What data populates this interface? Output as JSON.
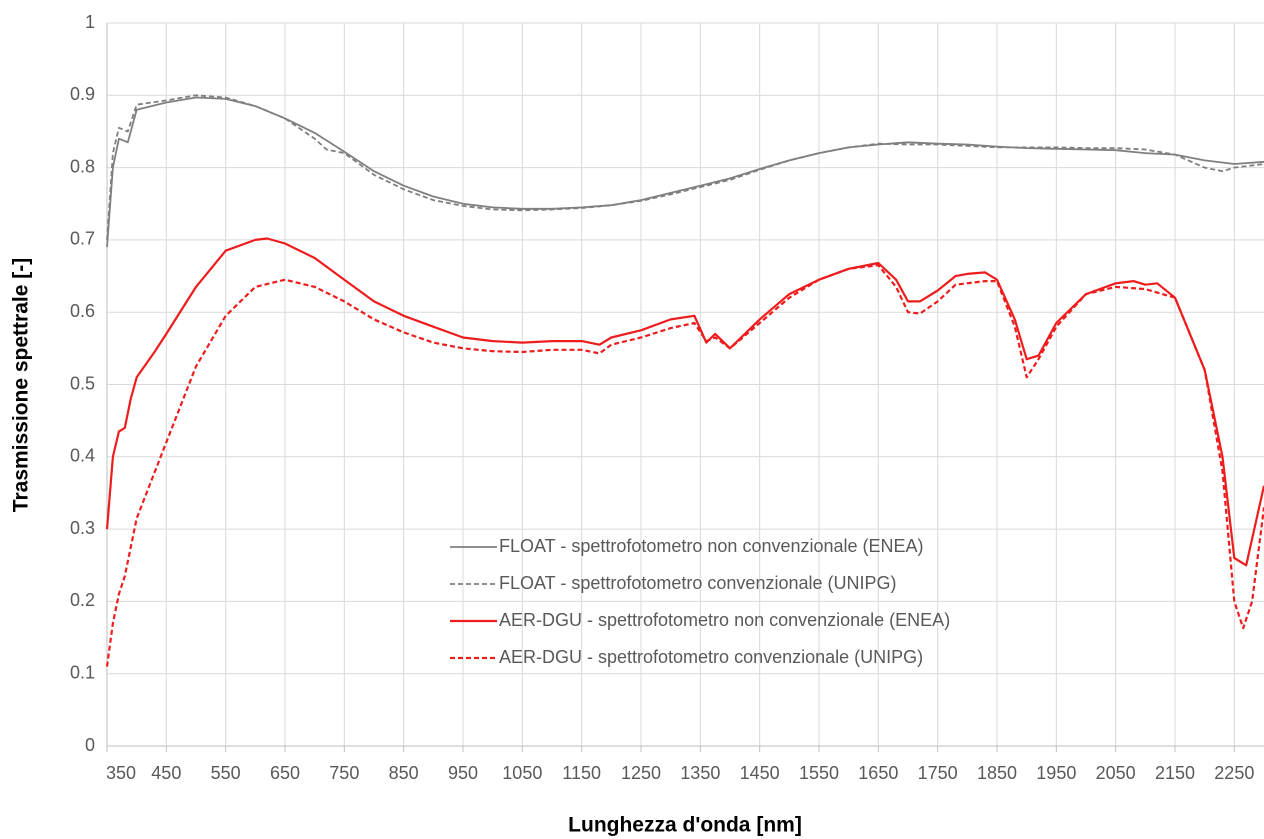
{
  "chart_data": {
    "type": "line",
    "xlabel": "Lunghezza d'onda [nm]",
    "ylabel": "Trasmissione spettrale [-]",
    "xlim": [
      350,
      2300
    ],
    "ylim": [
      0,
      1
    ],
    "xticks": [
      350,
      450,
      550,
      650,
      750,
      850,
      950,
      1050,
      1150,
      1250,
      1350,
      1450,
      1550,
      1650,
      1750,
      1850,
      1950,
      2050,
      2150,
      2250
    ],
    "yticks": [
      0,
      0.1,
      0.2,
      0.3,
      0.4,
      0.5,
      0.6,
      0.7,
      0.8,
      0.9,
      1
    ],
    "grid": true,
    "legend": "lower center",
    "series": [
      {
        "name": "FLOAT - spettrofotometro non convenzionale (ENEA)",
        "color": "#7f7f7f",
        "dash": false,
        "x": [
          350,
          360,
          370,
          385,
          400,
          450,
          500,
          550,
          600,
          650,
          700,
          750,
          800,
          850,
          900,
          950,
          1000,
          1050,
          1100,
          1150,
          1200,
          1250,
          1300,
          1350,
          1400,
          1450,
          1500,
          1550,
          1600,
          1650,
          1700,
          1750,
          1800,
          1850,
          1900,
          1950,
          2000,
          2050,
          2100,
          2150,
          2200,
          2250,
          2300
        ],
        "values": [
          0.69,
          0.8,
          0.84,
          0.835,
          0.88,
          0.89,
          0.897,
          0.895,
          0.885,
          0.868,
          0.848,
          0.822,
          0.795,
          0.775,
          0.76,
          0.75,
          0.745,
          0.743,
          0.743,
          0.745,
          0.748,
          0.755,
          0.765,
          0.775,
          0.785,
          0.798,
          0.81,
          0.82,
          0.828,
          0.832,
          0.835,
          0.833,
          0.832,
          0.829,
          0.827,
          0.826,
          0.825,
          0.824,
          0.82,
          0.818,
          0.81,
          0.805,
          0.808
        ]
      },
      {
        "name": "FLOAT - spettrofotometro convenzionale (UNIPG)",
        "color": "#7f7f7f",
        "dash": true,
        "x": [
          350,
          360,
          370,
          385,
          400,
          450,
          500,
          550,
          600,
          650,
          700,
          720,
          750,
          800,
          850,
          900,
          950,
          1000,
          1050,
          1100,
          1150,
          1200,
          1250,
          1300,
          1350,
          1400,
          1450,
          1500,
          1550,
          1600,
          1650,
          1700,
          1750,
          1800,
          1850,
          1900,
          1950,
          2000,
          2050,
          2100,
          2150,
          2200,
          2230,
          2250,
          2300
        ],
        "values": [
          0.7,
          0.82,
          0.855,
          0.85,
          0.887,
          0.893,
          0.9,
          0.897,
          0.885,
          0.868,
          0.84,
          0.825,
          0.82,
          0.79,
          0.77,
          0.755,
          0.747,
          0.742,
          0.741,
          0.742,
          0.744,
          0.748,
          0.754,
          0.763,
          0.773,
          0.783,
          0.797,
          0.81,
          0.82,
          0.828,
          0.833,
          0.832,
          0.832,
          0.83,
          0.828,
          0.828,
          0.828,
          0.827,
          0.827,
          0.825,
          0.818,
          0.8,
          0.795,
          0.8,
          0.805
        ]
      },
      {
        "name": "AER-DGU - spettrofotometro non convenzionale (ENEA)",
        "color": "#ee1c1c",
        "dash": false,
        "x": [
          350,
          360,
          370,
          380,
          390,
          400,
          430,
          450,
          500,
          550,
          600,
          620,
          650,
          700,
          750,
          800,
          850,
          900,
          950,
          1000,
          1050,
          1100,
          1150,
          1180,
          1200,
          1250,
          1300,
          1340,
          1360,
          1375,
          1400,
          1450,
          1500,
          1550,
          1600,
          1650,
          1680,
          1700,
          1720,
          1750,
          1780,
          1800,
          1830,
          1850,
          1880,
          1900,
          1920,
          1950,
          2000,
          2050,
          2080,
          2100,
          2120,
          2150,
          2200,
          2230,
          2250,
          2270,
          2300
        ],
        "values": [
          0.3,
          0.4,
          0.435,
          0.44,
          0.48,
          0.51,
          0.545,
          0.57,
          0.635,
          0.685,
          0.7,
          0.702,
          0.695,
          0.675,
          0.645,
          0.615,
          0.595,
          0.58,
          0.565,
          0.56,
          0.558,
          0.56,
          0.56,
          0.555,
          0.565,
          0.575,
          0.59,
          0.595,
          0.558,
          0.57,
          0.55,
          0.59,
          0.625,
          0.645,
          0.66,
          0.668,
          0.645,
          0.615,
          0.615,
          0.63,
          0.65,
          0.653,
          0.655,
          0.645,
          0.59,
          0.535,
          0.54,
          0.585,
          0.625,
          0.64,
          0.643,
          0.638,
          0.64,
          0.62,
          0.52,
          0.4,
          0.26,
          0.25,
          0.36
        ]
      },
      {
        "name": "AER-DGU - spettrofotometro convenzionale (UNIPG)",
        "color": "#ee1c1c",
        "dash": true,
        "x": [
          350,
          360,
          370,
          380,
          400,
          450,
          500,
          550,
          600,
          650,
          700,
          750,
          800,
          850,
          900,
          950,
          1000,
          1050,
          1100,
          1150,
          1180,
          1200,
          1250,
          1300,
          1340,
          1360,
          1375,
          1400,
          1450,
          1500,
          1550,
          1600,
          1650,
          1680,
          1700,
          1720,
          1750,
          1780,
          1830,
          1850,
          1880,
          1900,
          1920,
          1950,
          2000,
          2050,
          2100,
          2150,
          2200,
          2230,
          2250,
          2265,
          2280,
          2300
        ],
        "values": [
          0.11,
          0.17,
          0.21,
          0.235,
          0.315,
          0.42,
          0.525,
          0.595,
          0.635,
          0.645,
          0.635,
          0.615,
          0.59,
          0.572,
          0.558,
          0.55,
          0.546,
          0.545,
          0.548,
          0.548,
          0.543,
          0.555,
          0.565,
          0.578,
          0.585,
          0.56,
          0.565,
          0.55,
          0.585,
          0.62,
          0.645,
          0.66,
          0.665,
          0.635,
          0.6,
          0.598,
          0.615,
          0.638,
          0.643,
          0.643,
          0.58,
          0.51,
          0.535,
          0.58,
          0.625,
          0.635,
          0.632,
          0.62,
          0.52,
          0.38,
          0.2,
          0.163,
          0.2,
          0.33
        ]
      }
    ]
  }
}
